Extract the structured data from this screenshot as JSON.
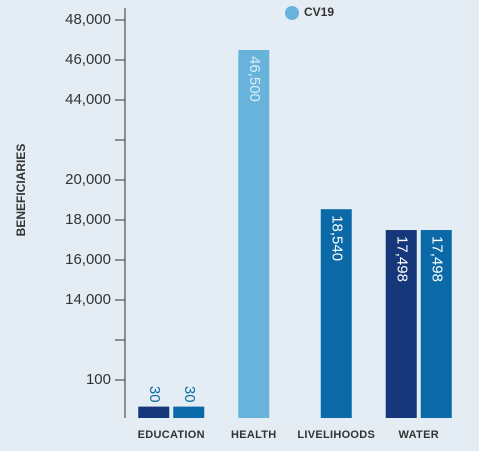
{
  "chart_data": {
    "type": "bar",
    "y_label": "BENEFICIARIES",
    "categories": [
      "EDUCATION",
      "HEALTH",
      "LIVELIHOODS",
      "WATER"
    ],
    "series": [
      {
        "color": "#16387a",
        "values": [
          30,
          null,
          null,
          17498
        ],
        "value_labels": [
          "30",
          null,
          null,
          "17,498"
        ]
      },
      {
        "color": "#0a69a6",
        "values": [
          30,
          null,
          18540,
          17498
        ],
        "value_labels": [
          "30",
          null,
          "18,540",
          "17,498"
        ]
      },
      {
        "name": "CV19",
        "color": "#67b3dc",
        "values": [
          null,
          46500,
          null,
          null
        ],
        "value_labels": [
          null,
          "46,500",
          null,
          null
        ]
      }
    ],
    "ylim": [
      0,
      48000
    ],
    "yticks": [
      {
        "value": 48000,
        "label": "48,000"
      },
      {
        "value": 46000,
        "label": "46,000"
      },
      {
        "value": 44000,
        "label": "44,000"
      },
      {
        "value": 20000,
        "label": "20,000"
      },
      {
        "value": 18000,
        "label": "18,000"
      },
      {
        "value": 16000,
        "label": "16,000"
      },
      {
        "value": 14000,
        "label": "14,000"
      },
      100
    ],
    "legend": "top"
  }
}
